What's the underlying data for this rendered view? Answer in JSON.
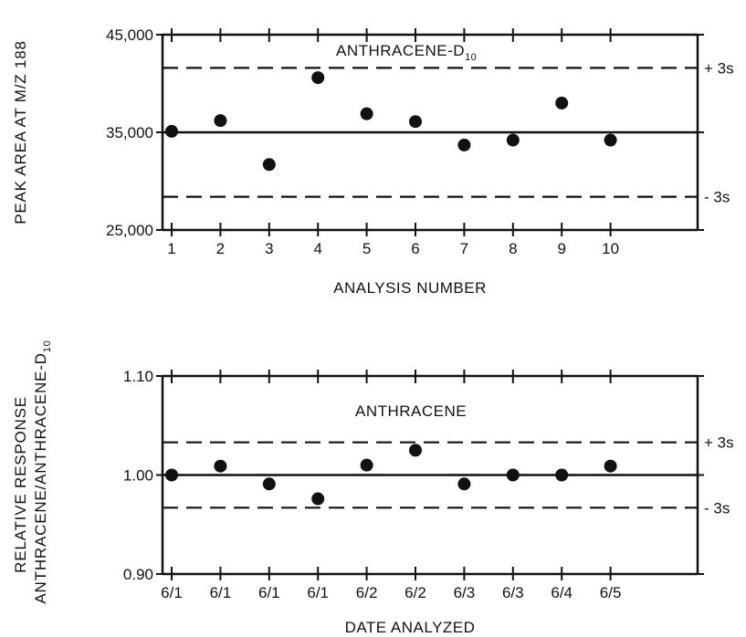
{
  "chart_data": [
    {
      "type": "scatter",
      "title": "ANTHRACENE-D",
      "title_subscript": "10",
      "ylabel": "PEAK AREA AT M/Z 188",
      "xlabel": "ANALYSIS NUMBER",
      "x": [
        1,
        2,
        3,
        4,
        5,
        6,
        7,
        8,
        9,
        10
      ],
      "x_tick_labels": [
        "1",
        "2",
        "3",
        "4",
        "5",
        "6",
        "7",
        "8",
        "9",
        "10"
      ],
      "values": [
        35100,
        36200,
        31700,
        40600,
        36900,
        36100,
        33700,
        34200,
        38000,
        34200
      ],
      "y_ticks": [
        25000,
        35000,
        45000
      ],
      "y_tick_labels": [
        "25,000",
        "35,000",
        "45,000"
      ],
      "ylim": [
        25000,
        45000
      ],
      "mean": 35000,
      "upper_limit": 41600,
      "lower_limit": 28400,
      "upper_limit_label": "+ 3s",
      "lower_limit_label": "- 3s",
      "grid": false
    },
    {
      "type": "scatter",
      "title": "ANTHRACENE",
      "ylabel_line1": "RELATIVE RESPONSE",
      "ylabel_line2": "ANTHRACENE/ANTHRACENE-D",
      "ylabel_subscript": "10",
      "xlabel": "DATE ANALYZED",
      "x_tick_labels": [
        "6/1",
        "6/1",
        "6/1",
        "6/1",
        "6/2",
        "6/2",
        "6/3",
        "6/3",
        "6/4",
        "6/5"
      ],
      "values": [
        1.0,
        1.009,
        0.991,
        0.976,
        1.01,
        1.025,
        0.991,
        1.0,
        1.0,
        1.009
      ],
      "y_ticks": [
        0.9,
        1.0,
        1.1
      ],
      "y_tick_labels": [
        "0.90",
        "1.00",
        "1.10"
      ],
      "ylim": [
        0.9,
        1.1
      ],
      "mean": 1.0,
      "upper_limit": 1.033,
      "lower_limit": 0.967,
      "upper_limit_label": "+ 3s",
      "lower_limit_label": "- 3s",
      "grid": false
    }
  ]
}
